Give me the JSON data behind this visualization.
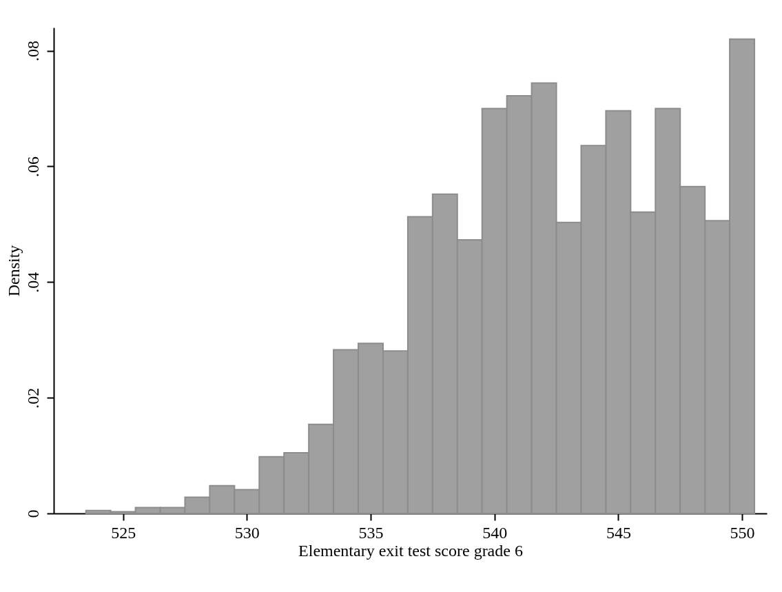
{
  "chart_data": {
    "type": "histogram",
    "xlabel": "Elementary exit test score grade 6",
    "ylabel": "Density",
    "bins": [
      523.5,
      524.5,
      525.5,
      526.5,
      527.5,
      528.5,
      529.5,
      530.5,
      531.5,
      532.5,
      533.5,
      534.5,
      535.5,
      536.5,
      537.5,
      538.5,
      539.5,
      540.5,
      541.5,
      542.5,
      543.5,
      544.5,
      545.5,
      546.5,
      547.5,
      548.5,
      549.5,
      550.5
    ],
    "values": [
      0.0005,
      0.0003,
      0.001,
      0.001,
      0.0028,
      0.0048,
      0.0041,
      0.0098,
      0.0105,
      0.0154,
      0.0283,
      0.0294,
      0.0281,
      0.0513,
      0.0552,
      0.0473,
      0.07,
      0.0722,
      0.0744,
      0.0503,
      0.0636,
      0.0696,
      0.0521,
      0.07,
      0.0565,
      0.0506,
      0.082
    ],
    "color": "#a0a0a0",
    "xlim": [
      522.2,
      551.0
    ],
    "xticks": [
      525,
      530,
      535,
      540,
      545,
      550
    ],
    "ylim": [
      0,
      0.084
    ],
    "yticks": [
      0,
      {
        "value": 0.02,
        "label": ".02"
      },
      {
        "value": 0.04,
        "label": ".04"
      },
      {
        "value": 0.06,
        "label": ".06"
      },
      {
        "value": 0.08,
        "label": ".08"
      }
    ],
    "grid": false
  }
}
